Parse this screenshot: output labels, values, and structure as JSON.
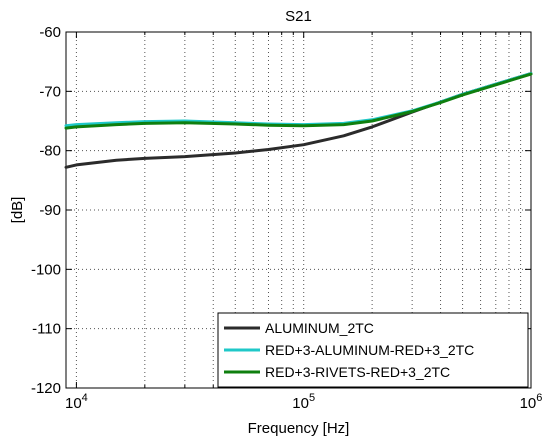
{
  "chart_data": {
    "type": "line",
    "title": "S21",
    "xlabel": "Frequency [Hz]",
    "ylabel": "[dB]",
    "xscale": "log",
    "xlim": [
      9000,
      1000000
    ],
    "ylim": [
      -120,
      -60
    ],
    "xticks": [
      10000,
      100000,
      1000000
    ],
    "xtick_labels": [
      {
        "base": "10",
        "exp": "4"
      },
      {
        "base": "10",
        "exp": "5"
      },
      {
        "base": "10",
        "exp": "6"
      }
    ],
    "yticks": [
      -60,
      -70,
      -80,
      -90,
      -100,
      -110,
      -120
    ],
    "ytick_labels": [
      "-60",
      "-70",
      "-80",
      "-90",
      "-100",
      "-110",
      "-120"
    ],
    "grid": true,
    "legend_position": "bottom-right",
    "series": [
      {
        "name": "ALUMINUM_2TC",
        "color": "#2b2b2b",
        "x": [
          9000,
          10000,
          15000,
          20000,
          30000,
          50000,
          70000,
          100000,
          150000,
          200000,
          300000,
          400000,
          500000,
          700000,
          1000000
        ],
        "y": [
          -82.8,
          -82.4,
          -81.6,
          -81.3,
          -81.0,
          -80.4,
          -79.8,
          -79.0,
          -77.5,
          -76.0,
          -73.5,
          -71.8,
          -70.5,
          -68.8,
          -67.0
        ]
      },
      {
        "name": "RED+3-ALUMINUM-RED+3_2TC",
        "color": "#1fc8c8",
        "x": [
          9000,
          10000,
          15000,
          20000,
          30000,
          50000,
          70000,
          100000,
          150000,
          200000,
          300000,
          400000,
          500000,
          700000,
          1000000
        ],
        "y": [
          -75.8,
          -75.6,
          -75.3,
          -75.1,
          -75.0,
          -75.3,
          -75.5,
          -75.6,
          -75.4,
          -74.8,
          -73.3,
          -71.8,
          -70.5,
          -68.8,
          -67.0
        ]
      },
      {
        "name": "RED+3-RIVETS-RED+3_2TC",
        "color": "#0f7f0f",
        "x": [
          9000,
          10000,
          15000,
          20000,
          30000,
          50000,
          70000,
          100000,
          150000,
          200000,
          300000,
          400000,
          500000,
          700000,
          1000000
        ],
        "y": [
          -76.2,
          -76.0,
          -75.6,
          -75.4,
          -75.3,
          -75.5,
          -75.7,
          -75.8,
          -75.6,
          -75.0,
          -73.4,
          -71.9,
          -70.6,
          -68.9,
          -67.1
        ]
      }
    ]
  }
}
